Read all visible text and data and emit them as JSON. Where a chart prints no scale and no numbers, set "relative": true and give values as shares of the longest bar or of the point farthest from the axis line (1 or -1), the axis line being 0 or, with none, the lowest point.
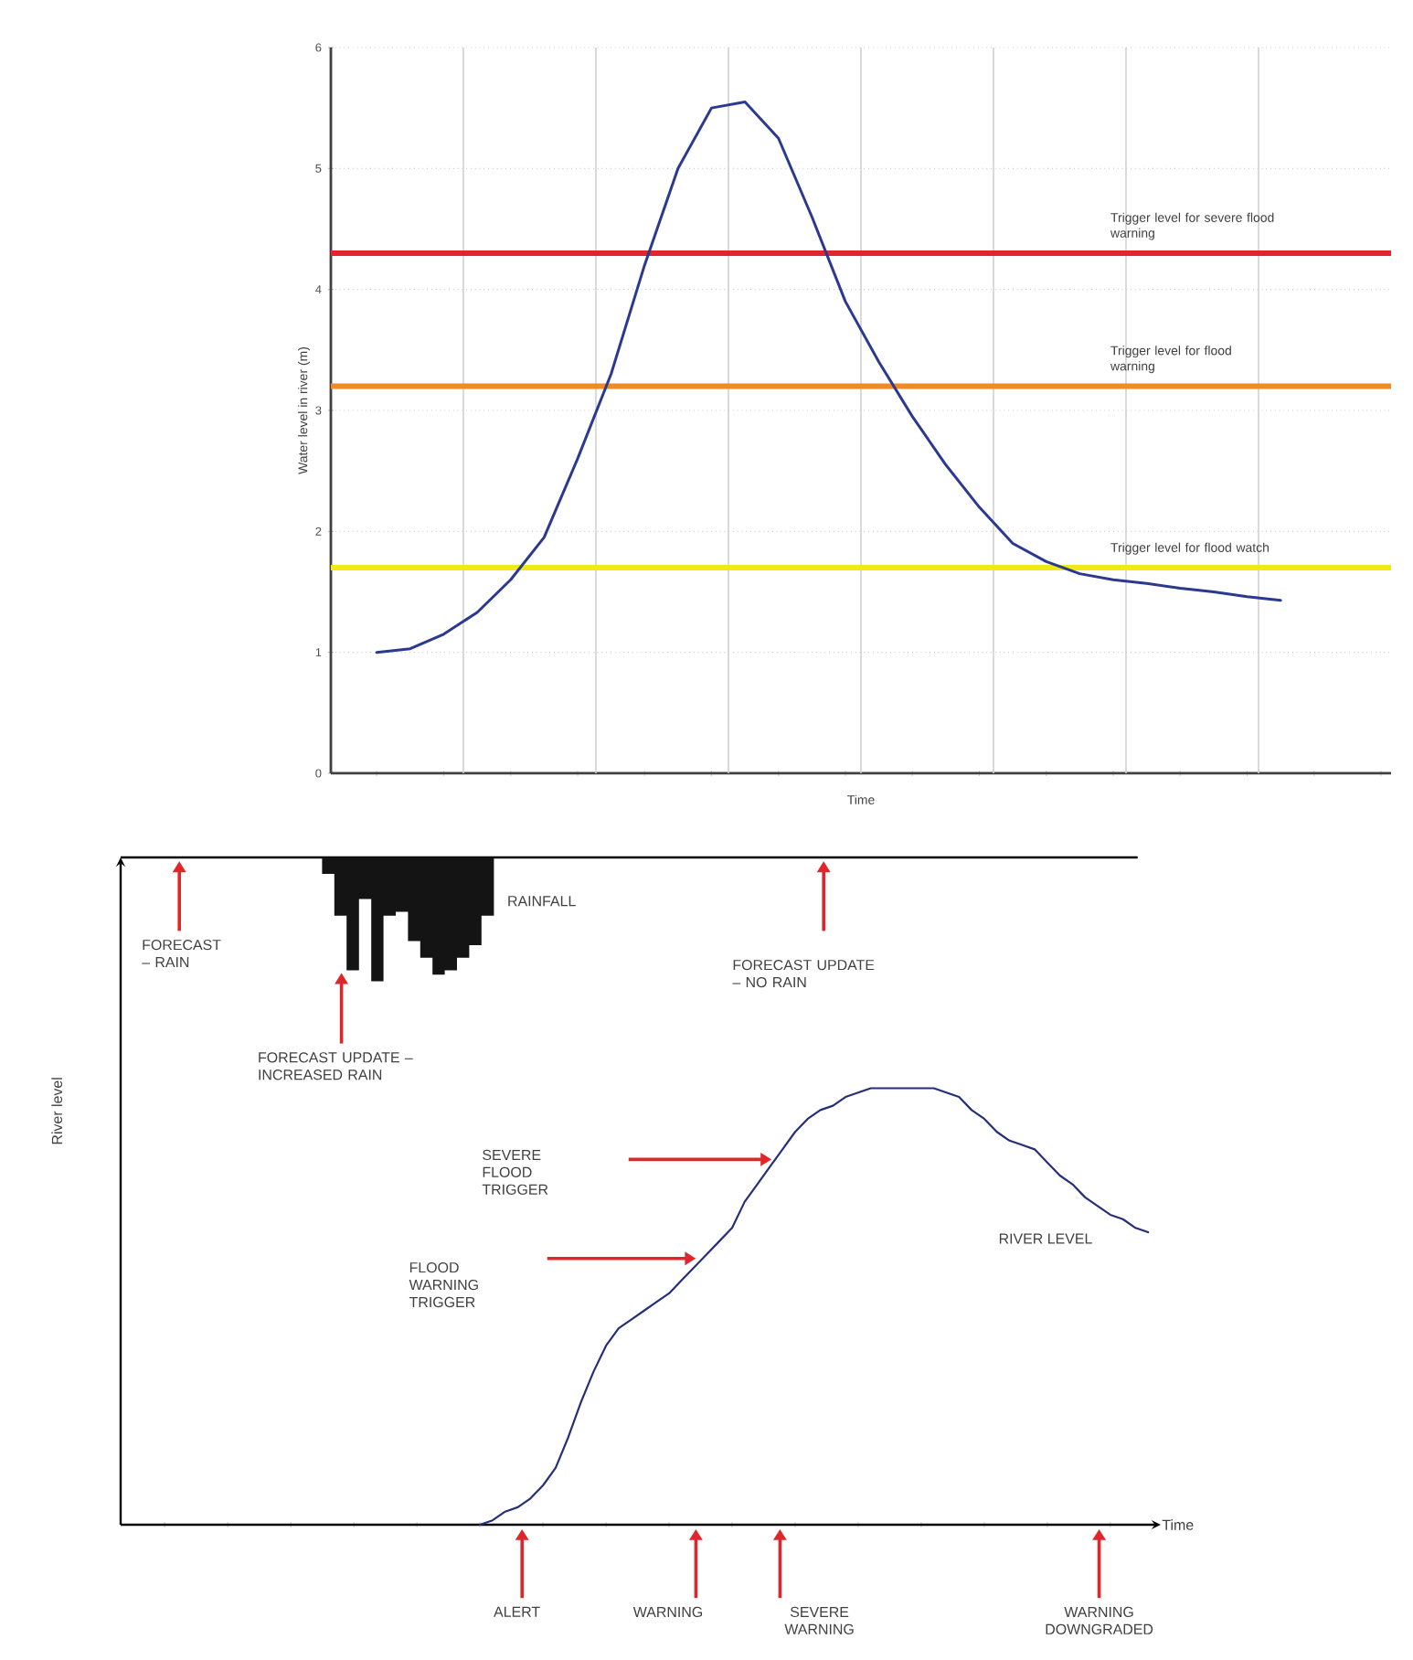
{
  "chart_data": [
    {
      "type": "line",
      "xlabel": "Time",
      "ylabel": "Water level in river (m)",
      "grid": true,
      "categories": [
        null,
        null,
        null,
        null,
        null,
        null,
        null,
        null,
        null,
        null,
        null,
        null,
        null,
        null,
        null,
        null,
        null,
        null,
        null,
        null,
        null,
        null,
        null,
        null,
        null,
        null,
        null,
        null
      ],
      "values": [
        1.0,
        1.03,
        1.15,
        1.33,
        1.6,
        1.95,
        2.6,
        3.3,
        4.2,
        5.0,
        5.5,
        5.55,
        5.25,
        4.6,
        3.9,
        3.4,
        2.95,
        2.55,
        2.2,
        1.9,
        1.75,
        1.65,
        1.6,
        1.57,
        1.53,
        1.5,
        1.46,
        1.43
      ],
      "color": "#2b3990",
      "ylim": [
        0,
        6
      ],
      "yticks": [
        0,
        1,
        2,
        3,
        4,
        5,
        6
      ],
      "ref_lines": [
        {
          "axis": "y",
          "value": 4.3,
          "label": "Trigger level for severe flood warning",
          "color": "#e3242b"
        },
        {
          "axis": "y",
          "value": 3.2,
          "label": "Trigger level for flood warning",
          "color": "#f08a24"
        },
        {
          "axis": "y",
          "value": 1.7,
          "label": "Trigger level for flood watch",
          "color": "#f2e818"
        }
      ]
    },
    {
      "type": "line",
      "relative": true,
      "xlabel": "Time",
      "ylabel": "River level",
      "categories": [
        null,
        null,
        null,
        null,
        null,
        null,
        null,
        null,
        null,
        null,
        null,
        null,
        null,
        null,
        null,
        null,
        null,
        null,
        null,
        null,
        null,
        null,
        null,
        null,
        null,
        null,
        null,
        null,
        null,
        null,
        null,
        null,
        null,
        null,
        null,
        null,
        null,
        null,
        null,
        null,
        null,
        null,
        null,
        null,
        null,
        null,
        null,
        null,
        null,
        null,
        null,
        null,
        null,
        null
      ],
      "series": [
        {
          "name": "RIVER LEVEL",
          "type": "line",
          "color": "#262f7a",
          "values": [
            0,
            0.01,
            0.03,
            0.04,
            0.06,
            0.09,
            0.13,
            0.2,
            0.28,
            0.35,
            0.41,
            0.45,
            0.47,
            0.49,
            0.51,
            0.53,
            0.56,
            0.59,
            0.62,
            0.65,
            0.68,
            0.74,
            0.78,
            0.82,
            0.86,
            0.9,
            0.93,
            0.95,
            0.96,
            0.98,
            0.99,
            1.0,
            1.0,
            1.0,
            1.0,
            1.0,
            1.0,
            0.99,
            0.98,
            0.95,
            0.93,
            0.9,
            0.88,
            0.87,
            0.86,
            0.83,
            0.8,
            0.78,
            0.75,
            0.73,
            0.71,
            0.7,
            0.68,
            0.67
          ]
        }
      ],
      "annotations": [
        "FORECAST – RAIN",
        "FORECAST UPDATE – INCREASED RAIN",
        "FORECAST UPDATE – NO RAIN",
        "SEVERE FLOOD TRIGGER",
        "FLOOD WARNING TRIGGER",
        "ALERT",
        "WARNING",
        "SEVERE WARNING",
        "WARNING DOWNGRADED",
        "RAINFALL"
      ]
    }
  ]
}
